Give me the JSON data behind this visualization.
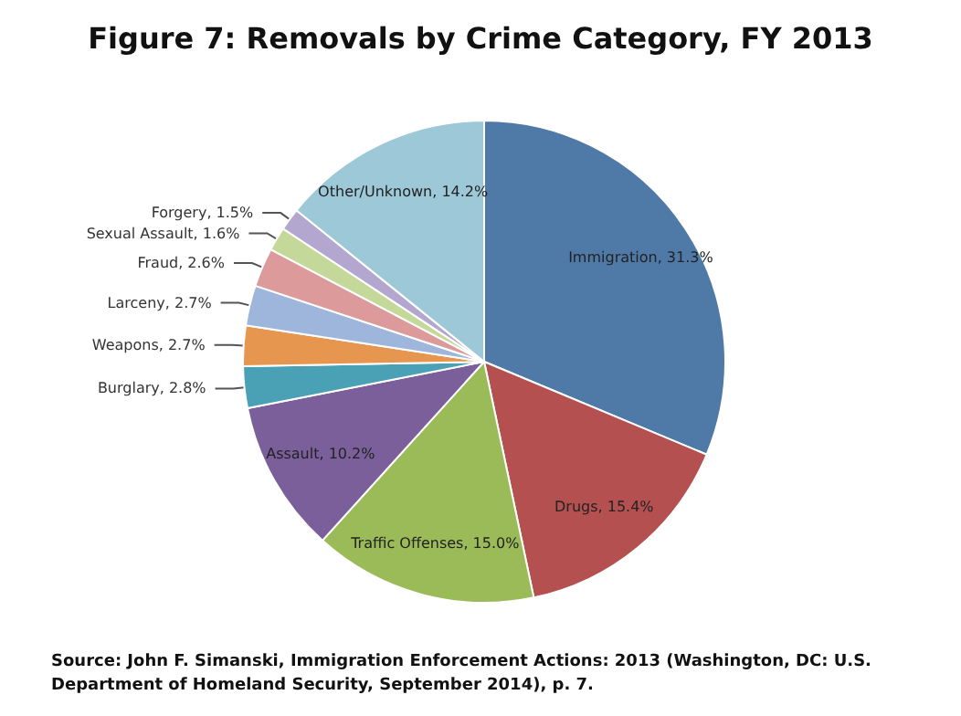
{
  "chart_data": {
    "type": "pie",
    "title": "Figure 7: Removals by Crime Category, FY 2013",
    "categories": [
      "Immigration",
      "Drugs",
      "Traffic Offenses",
      "Assault",
      "Burglary",
      "Weapons",
      "Larceny",
      "Fraud",
      "Sexual Assault",
      "Forgery",
      "Other/Unknown"
    ],
    "value_labels": [
      "31.3%",
      "15.4%",
      "15.0%",
      "10.2%",
      "2.8%",
      "2.7%",
      "2.7%",
      "2.6%",
      "1.6%",
      "1.5%",
      "14.2%"
    ],
    "values": [
      31.3,
      15.4,
      15.0,
      10.2,
      2.8,
      2.7,
      2.7,
      2.6,
      1.6,
      1.5,
      14.2
    ],
    "colors": [
      "#4f7aa8",
      "#b55050",
      "#9bbb59",
      "#7b5f9b",
      "#4aa1b5",
      "#e6964f",
      "#9fb6dc",
      "#dc9a9a",
      "#c4d89a",
      "#b4a7cf",
      "#9cc8d8"
    ],
    "annotations": [
      "Source: John F. Simanski, Immigration Enforcement Actions: 2013 (Washington, DC: U.S. Department of Homeland Security, September 2014), p. 7."
    ]
  }
}
